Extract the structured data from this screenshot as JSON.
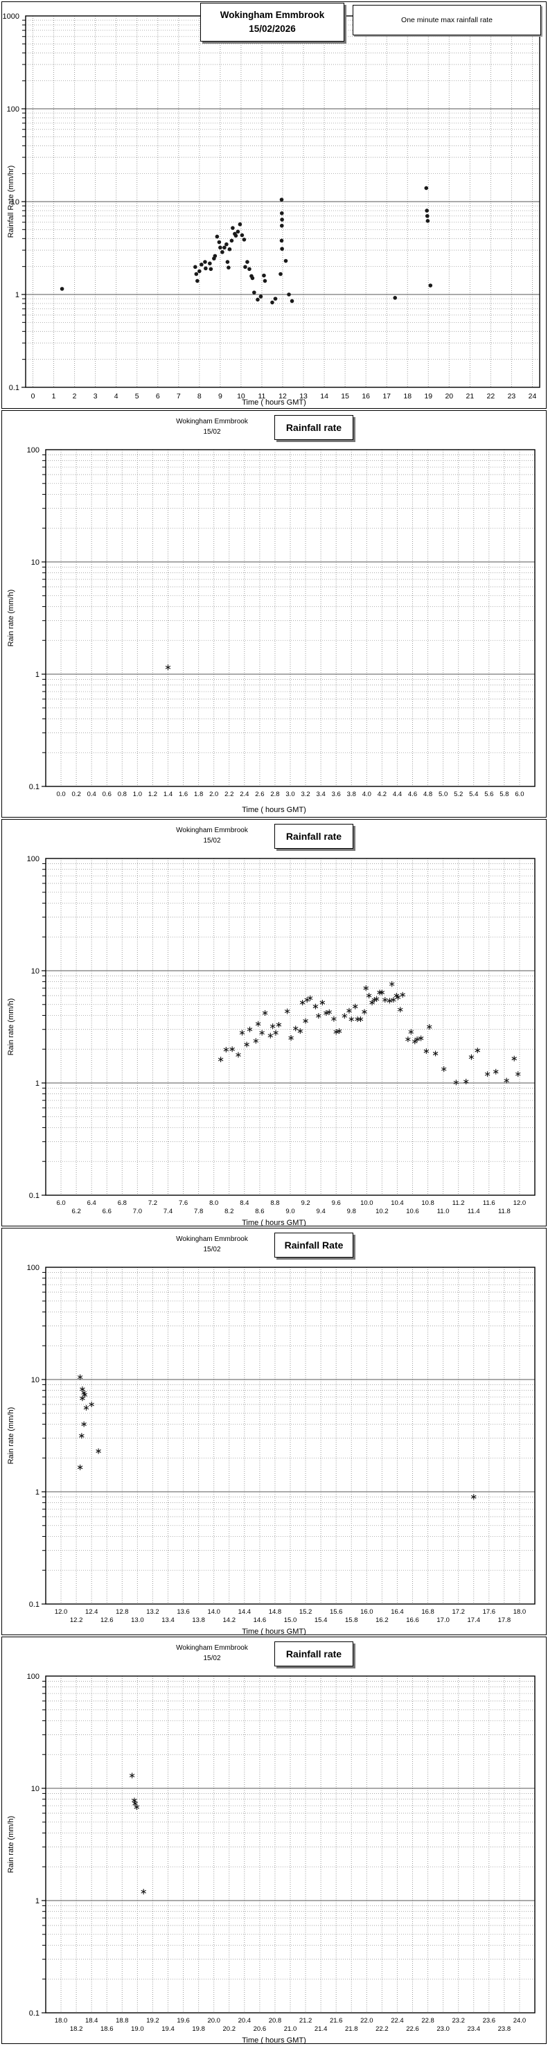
{
  "page": {
    "background": "#ffffff",
    "text_color": "#000000",
    "grid_minor_color": "#999999",
    "grid_major_color": "#555555",
    "marker_color": "#1a1a1a"
  },
  "chart_data": [
    {
      "type": "scatter",
      "station": "Wokingham Emmbrook",
      "date": "15/02/2026",
      "legend": "One minute max rainfall rate",
      "ylabel": "Rainfall Rate (mm/hr)",
      "xlabel": "Time ( hours GMT)",
      "yscale": "log",
      "ylim": [
        0.1,
        1000
      ],
      "yticks": [
        "1000",
        "100",
        "10",
        "1",
        "0.1"
      ],
      "xlim": [
        0,
        24
      ],
      "xgrid_step": 1,
      "stagger_xlabels": false,
      "marker": "dot",
      "xticks": [
        "0",
        "1",
        "2",
        "3",
        "4",
        "5",
        "6",
        "7",
        "8",
        "9",
        "10",
        "11",
        "12",
        "13",
        "14",
        "15",
        "16",
        "17",
        "18",
        "19",
        "20",
        "21",
        "22",
        "23",
        "24"
      ],
      "points": [
        [
          1.4,
          1.15
        ],
        [
          7.8,
          1.98
        ],
        [
          7.85,
          1.66
        ],
        [
          7.9,
          1.4
        ],
        [
          8.0,
          1.78
        ],
        [
          8.1,
          2.1
        ],
        [
          8.27,
          2.24
        ],
        [
          8.3,
          1.91
        ],
        [
          8.5,
          2.16
        ],
        [
          8.55,
          1.88
        ],
        [
          8.7,
          2.44
        ],
        [
          8.75,
          2.6
        ],
        [
          8.85,
          4.2
        ],
        [
          8.95,
          3.66
        ],
        [
          9.0,
          3.2
        ],
        [
          9.1,
          2.86
        ],
        [
          9.2,
          3.2
        ],
        [
          9.3,
          3.47
        ],
        [
          9.35,
          2.24
        ],
        [
          9.4,
          1.95
        ],
        [
          9.45,
          3.07
        ],
        [
          9.55,
          3.8
        ],
        [
          9.6,
          5.2
        ],
        [
          9.7,
          4.5
        ],
        [
          9.75,
          4.3
        ],
        [
          9.85,
          4.75
        ],
        [
          9.95,
          5.7
        ],
        [
          10.05,
          4.35
        ],
        [
          10.15,
          3.9
        ],
        [
          10.2,
          1.98
        ],
        [
          10.3,
          2.24
        ],
        [
          10.4,
          1.88
        ],
        [
          10.5,
          1.58
        ],
        [
          10.55,
          1.5
        ],
        [
          10.63,
          1.05
        ],
        [
          10.8,
          0.88
        ],
        [
          10.95,
          0.95
        ],
        [
          11.1,
          1.6
        ],
        [
          11.15,
          1.4
        ],
        [
          11.5,
          0.82
        ],
        [
          11.65,
          0.9
        ],
        [
          11.9,
          1.66
        ],
        [
          11.95,
          10.5
        ],
        [
          11.96,
          7.5
        ],
        [
          11.97,
          6.4
        ],
        [
          11.96,
          5.5
        ],
        [
          11.95,
          3.8
        ],
        [
          11.97,
          3.1
        ],
        [
          12.15,
          2.3
        ],
        [
          12.3,
          1.0
        ],
        [
          12.45,
          0.85
        ],
        [
          17.4,
          0.92
        ],
        [
          18.9,
          14.0
        ],
        [
          18.93,
          8.0
        ],
        [
          18.95,
          7.0
        ],
        [
          18.97,
          6.2
        ],
        [
          19.1,
          1.25
        ]
      ]
    },
    {
      "type": "scatter",
      "station": "Wokingham Emmbrook",
      "date": "15/02",
      "title": "Rainfall rate",
      "ylabel": "Rain rate (mm/h)",
      "xlabel": "Time ( hours GMT)",
      "yscale": "log",
      "ylim": [
        0.1,
        100
      ],
      "yticks": [
        "100",
        "10",
        "1",
        "0.1"
      ],
      "xlim": [
        0.0,
        6.0
      ],
      "xgrid_step": 0.2,
      "stagger_xlabels": false,
      "marker": "star",
      "xticks": [
        "0.0",
        "0.2",
        "0.4",
        "0.6",
        "0.8",
        "1.0",
        "1.2",
        "1.4",
        "1.6",
        "1.8",
        "2.0",
        "2.2",
        "2.4",
        "2.6",
        "2.8",
        "3.0",
        "3.2",
        "3.4",
        "3.6",
        "3.8",
        "4.0",
        "4.2",
        "4.4",
        "4.6",
        "4.8",
        "5.0",
        "5.2",
        "5.4",
        "5.6",
        "5.8",
        "6.0"
      ],
      "points": [
        [
          1.4,
          1.15
        ]
      ]
    },
    {
      "type": "scatter",
      "station": "Wokingham Emmbrook",
      "date": "15/02",
      "title": "Rainfall rate",
      "ylabel": "Rain rate (mm/h)",
      "xlabel": "Time ( hours GMT)",
      "yscale": "log",
      "ylim": [
        0.1,
        100
      ],
      "yticks": [
        "100",
        "10",
        "1",
        "0.1"
      ],
      "xlim": [
        6.0,
        12.0
      ],
      "xgrid_step": 0.2,
      "stagger_xlabels": true,
      "marker": "star",
      "xticks": [
        "6.0",
        "6.2",
        "6.4",
        "6.6",
        "6.8",
        "7.0",
        "7.2",
        "7.4",
        "7.6",
        "7.8",
        "8.0",
        "8.2",
        "8.4",
        "8.6",
        "8.8",
        "9.0",
        "9.2",
        "9.4",
        "9.6",
        "9.8",
        "10.0",
        "10.2",
        "10.4",
        "10.6",
        "10.8",
        "11.0",
        "11.2",
        "11.4",
        "11.6",
        "11.8",
        "12.0"
      ],
      "points": [
        [
          8.09,
          1.62
        ],
        [
          8.16,
          1.98
        ],
        [
          8.24,
          2.0
        ],
        [
          8.32,
          1.78
        ],
        [
          8.37,
          2.8
        ],
        [
          8.43,
          2.2
        ],
        [
          8.47,
          3.0
        ],
        [
          8.55,
          2.37
        ],
        [
          8.58,
          3.36
        ],
        [
          8.63,
          2.8
        ],
        [
          8.67,
          4.2
        ],
        [
          8.74,
          2.64
        ],
        [
          8.77,
          3.2
        ],
        [
          8.81,
          2.8
        ],
        [
          8.85,
          3.3
        ],
        [
          8.96,
          4.35
        ],
        [
          9.01,
          2.52
        ],
        [
          9.07,
          3.06
        ],
        [
          9.13,
          2.9
        ],
        [
          9.16,
          5.2
        ],
        [
          9.2,
          3.57
        ],
        [
          9.22,
          5.5
        ],
        [
          9.26,
          5.7
        ],
        [
          9.33,
          4.8
        ],
        [
          9.37,
          3.96
        ],
        [
          9.42,
          5.2
        ],
        [
          9.47,
          4.2
        ],
        [
          9.51,
          4.28
        ],
        [
          9.57,
          3.72
        ],
        [
          9.6,
          2.85
        ],
        [
          9.64,
          2.9
        ],
        [
          9.71,
          3.96
        ],
        [
          9.77,
          4.4
        ],
        [
          9.8,
          3.7
        ],
        [
          9.85,
          4.8
        ],
        [
          9.88,
          3.7
        ],
        [
          9.92,
          3.7
        ],
        [
          9.97,
          4.3
        ],
        [
          9.99,
          7.0
        ],
        [
          10.03,
          6.0
        ],
        [
          10.07,
          5.2
        ],
        [
          10.1,
          5.5
        ],
        [
          10.13,
          5.6
        ],
        [
          10.17,
          6.4
        ],
        [
          10.2,
          6.4
        ],
        [
          10.24,
          5.5
        ],
        [
          10.3,
          5.4
        ],
        [
          10.33,
          7.6
        ],
        [
          10.35,
          5.5
        ],
        [
          10.39,
          6.0
        ],
        [
          10.41,
          5.8
        ],
        [
          10.44,
          4.5
        ],
        [
          10.47,
          6.1
        ],
        [
          10.54,
          2.45
        ],
        [
          10.58,
          2.85
        ],
        [
          10.63,
          2.34
        ],
        [
          10.66,
          2.45
        ],
        [
          10.71,
          2.5
        ],
        [
          10.78,
          1.92
        ],
        [
          10.82,
          3.16
        ],
        [
          10.9,
          1.83
        ],
        [
          11.01,
          1.33
        ],
        [
          11.17,
          1.01
        ],
        [
          11.3,
          1.03
        ],
        [
          11.37,
          1.7
        ],
        [
          11.45,
          1.95
        ],
        [
          11.58,
          1.2
        ],
        [
          11.69,
          1.26
        ],
        [
          11.83,
          1.05
        ],
        [
          11.93,
          1.65
        ],
        [
          11.98,
          1.2
        ]
      ]
    },
    {
      "type": "scatter",
      "station": "Wokingham Emmbrook",
      "date": "15/02",
      "title": "Rainfall Rate",
      "ylabel": "Rain rate (mm/h)",
      "xlabel": "Time ( hours GMT)",
      "yscale": "log",
      "ylim": [
        0.1,
        100
      ],
      "yticks": [
        "100",
        "10",
        "1",
        "0.1"
      ],
      "xlim": [
        12.0,
        18.0
      ],
      "xgrid_step": 0.2,
      "stagger_xlabels": true,
      "marker": "star",
      "xticks": [
        "12.0",
        "12.2",
        "12.4",
        "12.6",
        "12.8",
        "13.0",
        "13.2",
        "13.4",
        "13.6",
        "13.8",
        "14.0",
        "14.2",
        "14.4",
        "14.6",
        "14.8",
        "15.0",
        "15.2",
        "15.4",
        "15.6",
        "15.8",
        "16.0",
        "16.2",
        "16.4",
        "16.6",
        "16.8",
        "17.0",
        "17.2",
        "17.4",
        "17.6",
        "17.8",
        "18.0"
      ],
      "points": [
        [
          12.25,
          10.5
        ],
        [
          12.28,
          8.2
        ],
        [
          12.3,
          7.6
        ],
        [
          12.31,
          7.3
        ],
        [
          12.28,
          6.8
        ],
        [
          12.33,
          5.6
        ],
        [
          12.4,
          6.0
        ],
        [
          12.3,
          4.0
        ],
        [
          12.27,
          3.15
        ],
        [
          12.49,
          2.3
        ],
        [
          12.25,
          1.65
        ],
        [
          17.4,
          0.9
        ]
      ]
    },
    {
      "type": "scatter",
      "station": "Wokingham Emmbrook",
      "date": "15/02",
      "title": "Rainfall rate",
      "ylabel": "Rain rate (mm/h)",
      "xlabel": "Time ( hours GMT)",
      "yscale": "log",
      "ylim": [
        0.1,
        100
      ],
      "yticks": [
        "100",
        "10",
        "1",
        "0.1"
      ],
      "xlim": [
        18.0,
        24.0
      ],
      "xgrid_step": 0.2,
      "stagger_xlabels": true,
      "marker": "star",
      "xticks": [
        "18.0",
        "18.2",
        "18.4",
        "18.6",
        "18.8",
        "19.0",
        "19.2",
        "19.4",
        "19.6",
        "19.8",
        "20.0",
        "20.2",
        "20.4",
        "20.6",
        "20.8",
        "21.0",
        "21.2",
        "21.4",
        "21.6",
        "21.8",
        "22.0",
        "22.2",
        "22.4",
        "22.6",
        "22.8",
        "23.0",
        "23.2",
        "23.4",
        "23.6",
        "23.8",
        "24.0"
      ],
      "points": [
        [
          18.93,
          13.0
        ],
        [
          18.96,
          7.8
        ],
        [
          18.97,
          7.3
        ],
        [
          18.99,
          6.8
        ],
        [
          19.08,
          1.2
        ]
      ]
    }
  ]
}
